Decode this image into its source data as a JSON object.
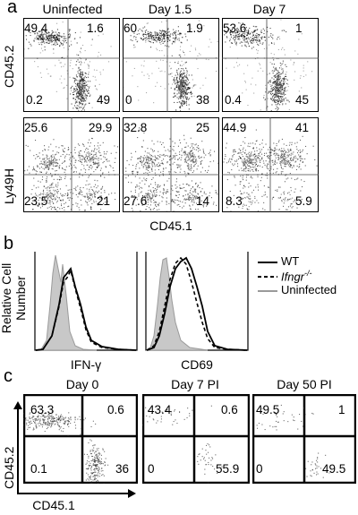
{
  "panel_a": {
    "letter": "a",
    "columns": [
      "Uninfected",
      "Day 1.5",
      "Day 7"
    ],
    "row1_ylabel": "CD45.2",
    "row2_ylabel": "Ly49H",
    "xlabel": "CD45.1",
    "row1": [
      {
        "ul": "49.4",
        "ur": "1.6",
        "ll": "0.2",
        "lr": "49"
      },
      {
        "ul": "60",
        "ur": "1.9",
        "ll": "0",
        "lr": "38"
      },
      {
        "ul": "53.6",
        "ur": "1",
        "ll": "0.4",
        "lr": "45"
      }
    ],
    "row2": [
      {
        "ul": "25.6",
        "ur": "29.9",
        "ll": "23.5",
        "lr": "21"
      },
      {
        "ul": "32.8",
        "ur": "25",
        "ll": "27.6",
        "lr": "14"
      },
      {
        "ul": "44.9",
        "ur": "41",
        "ll": "8.3",
        "lr": "5.9"
      }
    ]
  },
  "panel_b": {
    "letter": "b",
    "ylabel_line1": "Relative Cell",
    "ylabel_line2": "Number",
    "xlabels": [
      "IFN-γ",
      "CD69"
    ],
    "legend": [
      {
        "label": "WT",
        "style": "solid"
      },
      {
        "label": "Ifngr-/-",
        "label_main": "Ifngr",
        "label_sup": "-/-",
        "style": "dashed"
      },
      {
        "label": "Uninfected",
        "style": "gray"
      }
    ]
  },
  "panel_c": {
    "letter": "c",
    "columns": [
      "Day 0",
      "Day 7 PI",
      "Day 50 PI"
    ],
    "ylabel": "CD45.2",
    "xlabel": "CD45.1",
    "quadrants": [
      {
        "ul": "63.3",
        "ur": "0.6",
        "ll": "0.1",
        "lr": "36"
      },
      {
        "ul": "43.4",
        "ur": "0.6",
        "ll": "0",
        "lr": "55.9"
      },
      {
        "ul": "49.5",
        "ur": "1",
        "ll": "0",
        "lr": "49.5"
      }
    ]
  },
  "colors": {
    "hist_fill": "#c8c8c8",
    "hist_gray_line": "#9a9a9a",
    "dots": "#000000"
  }
}
